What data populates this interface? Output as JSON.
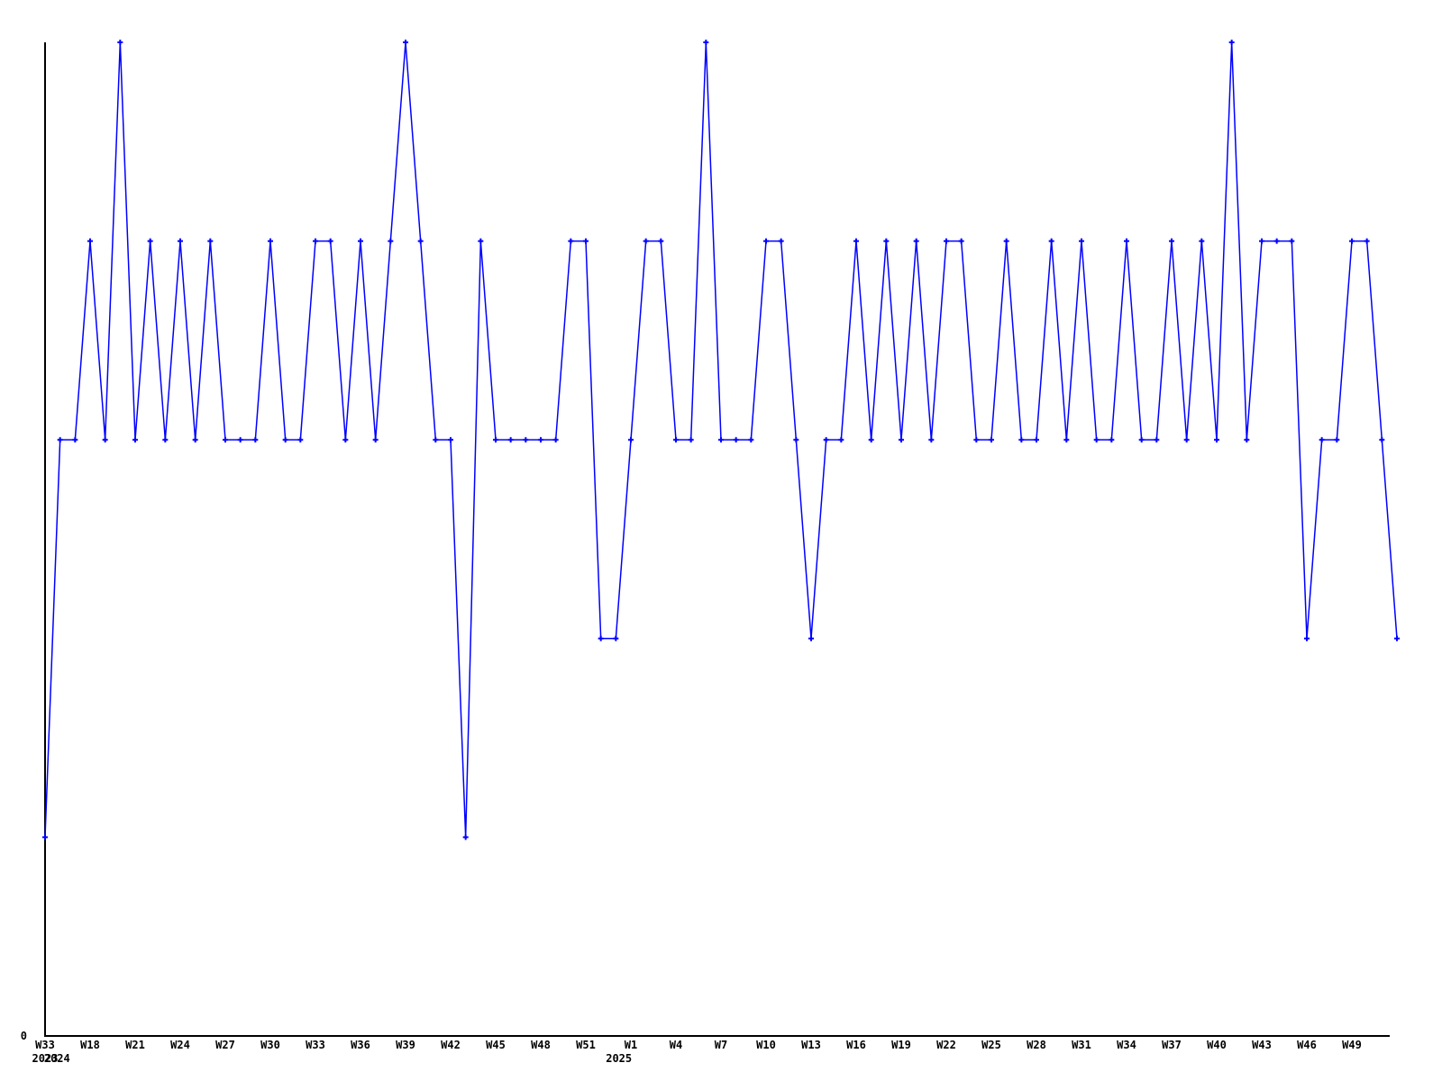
{
  "chart_data": {
    "type": "line",
    "title": "",
    "xlabel": "",
    "ylabel": "",
    "ylim": [
      0,
      5
    ],
    "grid": false,
    "legend": "none",
    "series_color": "#0000ff",
    "axis_color": "#000000",
    "marker": "plus",
    "y_zero_label": "0",
    "x_tick_every": 3,
    "x_tick_labels": [
      "W33",
      "W18",
      "W21",
      "W24",
      "W27",
      "W30",
      "W33",
      "W36",
      "W39",
      "W42",
      "W45",
      "W48",
      "W51",
      "W1",
      "W4",
      "W7",
      "W10",
      "W13",
      "W16",
      "W19",
      "W22",
      "W25",
      "W28",
      "W31",
      "W34",
      "W37",
      "W40",
      "W43",
      "W46",
      "W49"
    ],
    "year_labels": [
      {
        "label": "2023",
        "point_index": 0
      },
      {
        "label": "2024",
        "point_index": 0.8
      },
      {
        "label": "2025",
        "point_index": 38.2
      }
    ],
    "values": [
      1,
      3,
      3,
      4,
      3,
      5,
      3,
      4,
      3,
      4,
      3,
      4,
      3,
      3,
      3,
      4,
      3,
      3,
      4,
      4,
      3,
      4,
      3,
      4,
      5,
      4,
      3,
      3,
      1,
      4,
      3,
      3,
      3,
      3,
      3,
      4,
      4,
      2,
      2,
      3,
      4,
      4,
      3,
      3,
      5,
      3,
      3,
      3,
      4,
      4,
      3,
      2,
      3,
      3,
      4,
      3,
      4,
      3,
      4,
      3,
      4,
      4,
      3,
      3,
      4,
      3,
      3,
      4,
      3,
      4,
      3,
      3,
      4,
      3,
      3,
      4,
      3,
      4,
      3,
      5,
      3,
      4,
      4,
      4,
      2,
      3,
      3,
      4,
      4,
      3,
      2
    ]
  }
}
